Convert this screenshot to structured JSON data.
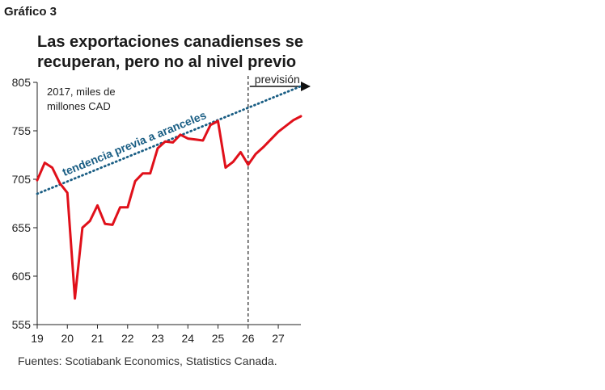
{
  "header": {
    "figure_label": "Gráfico 3",
    "title_line1": "Las exportaciones canadienses se",
    "title_line2": "recuperan, pero no al nivel previo"
  },
  "source": "Fuentes: Scotiabank Economics, Statistics Canada.",
  "colors": {
    "actual": "#e0101a",
    "trend": "#1a5e84",
    "axis": "#222222"
  },
  "chart_data": {
    "type": "line",
    "title": "Las exportaciones canadienses se recuperan, pero no al nivel previo",
    "unit_label_line1": "2017, miles de",
    "unit_label_line2": "millones CAD",
    "x_tick_labels": [
      "19",
      "20",
      "21",
      "22",
      "23",
      "24",
      "25",
      "26",
      "27"
    ],
    "x_ticks": [
      2019,
      2020,
      2021,
      2022,
      2023,
      2024,
      2025,
      2026,
      2027
    ],
    "xlim": [
      2019,
      2027.75
    ],
    "y_tick_labels": [
      "805",
      "755",
      "705",
      "655",
      "605",
      "555"
    ],
    "y_ticks": [
      805,
      755,
      705,
      655,
      605,
      555
    ],
    "ylim": [
      555,
      805
    ],
    "forecast_start": 2026,
    "forecast_label": "previsión",
    "grid": false,
    "series": [
      {
        "name": "",
        "x": [
          2019.0,
          2019.25,
          2019.5,
          2019.75,
          2020.0,
          2020.25,
          2020.5,
          2020.75,
          2021.0,
          2021.25,
          2021.5,
          2021.75,
          2022.0,
          2022.25,
          2022.5,
          2022.75,
          2023.0,
          2023.25,
          2023.5,
          2023.75,
          2024.0,
          2024.25,
          2024.5,
          2024.75,
          2025.0,
          2025.25,
          2025.5,
          2025.75,
          2026.0,
          2026.25,
          2026.5,
          2026.75,
          2027.0,
          2027.25,
          2027.5,
          2027.75
        ],
        "values": [
          704,
          722,
          717,
          701,
          691,
          582,
          655,
          662,
          678,
          659,
          658,
          676,
          676,
          703,
          711,
          711,
          737,
          744,
          743,
          751,
          747,
          746,
          745,
          761,
          765,
          717,
          723,
          733,
          720,
          731,
          738,
          746,
          754,
          760,
          766,
          770
        ]
      },
      {
        "name": "tendencia previa a aranceles",
        "x": [
          2019.0,
          2027.75
        ],
        "values": [
          690,
          801
        ]
      }
    ]
  }
}
